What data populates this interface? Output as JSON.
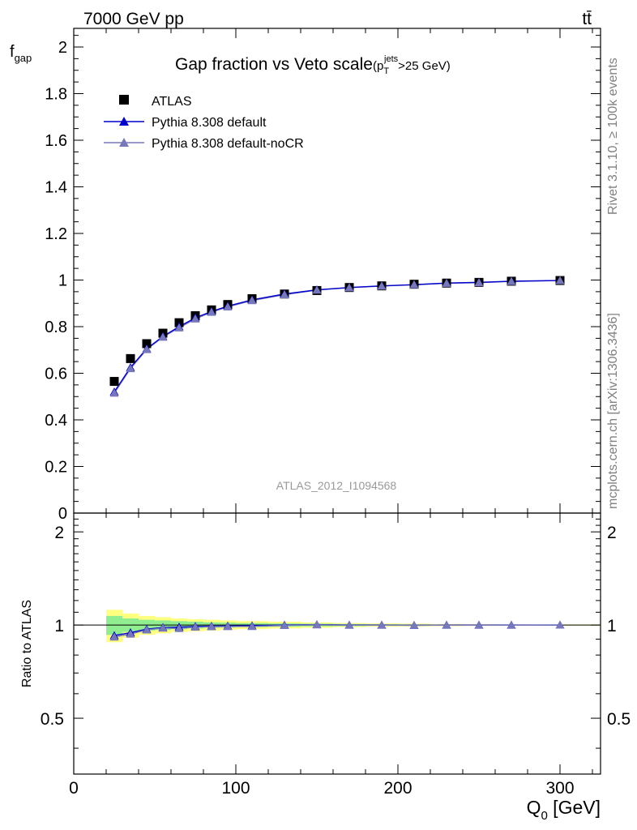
{
  "header": {
    "left": "7000 GeV pp",
    "right": "tt̄"
  },
  "side_labels": {
    "top": "Rivet 3.1.10, ≥ 100k events",
    "bottom": "mcplots.cern.ch [arXiv:1306.3436]"
  },
  "analysis_id": "ATLAS_2012_I1094568",
  "colors": {
    "data": "#000000",
    "default": "#0000cc",
    "noCR": "#7777bb",
    "band_inner": "#90ee90",
    "band_outer": "#ffff80"
  },
  "chart_data": [
    {
      "type": "line",
      "panel": "main",
      "title": "Gap fraction vs Veto scale",
      "title_suffix": {
        "p": "(p",
        "sub": "T",
        "sup": "jets",
        "rest": ">25 GeV)"
      },
      "ylabel": {
        "main": "f",
        "sub": "gap"
      },
      "xlim": [
        0,
        325
      ],
      "ylim": [
        0,
        2.08
      ],
      "yticks": [
        "0",
        "0.2",
        "0.4",
        "0.6",
        "0.8",
        "1",
        "1.2",
        "1.4",
        "1.6",
        "1.8",
        "2"
      ],
      "ytick_values": [
        0,
        0.2,
        0.4,
        0.6,
        0.8,
        1.0,
        1.2,
        1.4,
        1.6,
        1.8,
        2.0
      ],
      "legend_position": "top-left",
      "x": [
        25,
        35,
        45,
        55,
        65,
        75,
        85,
        95,
        110,
        130,
        150,
        170,
        190,
        210,
        230,
        250,
        270,
        300
      ],
      "series": [
        {
          "name": "ATLAS",
          "marker": "square",
          "values": [
            0.565,
            0.663,
            0.727,
            0.772,
            0.817,
            0.847,
            0.872,
            0.895,
            0.92,
            0.94,
            0.955,
            0.968,
            0.975,
            0.982,
            0.987,
            0.99,
            0.995,
            0.998
          ]
        },
        {
          "name": "Pythia 8.308 default",
          "marker": "triangle",
          "values": [
            0.52,
            0.625,
            0.705,
            0.758,
            0.8,
            0.838,
            0.865,
            0.888,
            0.915,
            0.94,
            0.958,
            0.968,
            0.975,
            0.98,
            0.987,
            0.99,
            0.995,
            0.998
          ]
        },
        {
          "name": "Pythia 8.308 default-noCR",
          "marker": "triangle",
          "values": [
            0.515,
            0.62,
            0.702,
            0.755,
            0.795,
            0.833,
            0.862,
            0.885,
            0.912,
            0.937,
            0.957,
            0.967,
            0.974,
            0.98,
            0.986,
            0.989,
            0.994,
            0.998
          ]
        }
      ]
    },
    {
      "type": "line",
      "panel": "ratio",
      "ylabel": "Ratio to ATLAS",
      "xlabel": "Q",
      "xlabel_sub": "0",
      "xlabel_rest": " [GeV]",
      "xlim": [
        0,
        325
      ],
      "ylim": [
        0.33,
        2.3
      ],
      "xticks": [
        "0",
        "100",
        "200",
        "300"
      ],
      "xtick_values": [
        0,
        100,
        200,
        300
      ],
      "yticks": [
        "0.5",
        "1",
        "2"
      ],
      "ytick_values": [
        0.5,
        1,
        2
      ],
      "bands": {
        "x_edges": [
          20,
          30,
          40,
          50,
          60,
          70,
          80,
          90,
          100,
          120,
          140,
          160,
          180,
          200,
          220,
          240,
          260,
          280,
          325
        ],
        "outer": [
          0.12,
          0.09,
          0.07,
          0.06,
          0.05,
          0.045,
          0.04,
          0.035,
          0.03,
          0.025,
          0.02,
          0.015,
          0.012,
          0.01,
          0.008,
          0.006,
          0.005,
          0.004
        ],
        "inner": [
          0.07,
          0.05,
          0.04,
          0.035,
          0.03,
          0.025,
          0.02,
          0.018,
          0.015,
          0.012,
          0.01,
          0.008,
          0.006,
          0.005,
          0.004,
          0.003,
          0.002,
          0.002
        ]
      },
      "x": [
        25,
        35,
        45,
        55,
        65,
        75,
        85,
        95,
        110,
        130,
        150,
        170,
        190,
        210,
        230,
        250,
        270,
        300
      ],
      "series": [
        {
          "name": "Pythia 8.308 default",
          "values": [
            0.925,
            0.945,
            0.97,
            0.982,
            0.985,
            0.99,
            0.992,
            0.993,
            0.995,
            1.0,
            1.003,
            1.0,
            1.0,
            0.998,
            1.0,
            1.0,
            1.0,
            1.0
          ]
        },
        {
          "name": "Pythia 8.308 default-noCR",
          "values": [
            0.915,
            0.935,
            0.965,
            0.978,
            0.975,
            0.985,
            0.988,
            0.989,
            0.99,
            0.997,
            1.002,
            0.999,
            0.999,
            0.998,
            0.999,
            0.999,
            0.999,
            1.0
          ]
        }
      ]
    }
  ]
}
